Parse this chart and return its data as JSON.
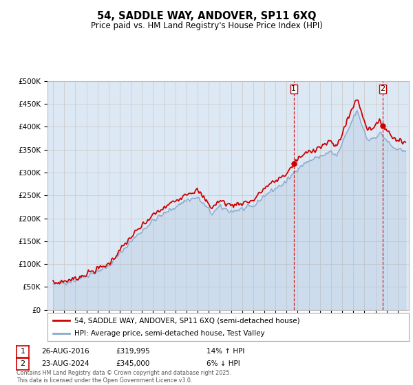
{
  "title": "54, SADDLE WAY, ANDOVER, SP11 6XQ",
  "subtitle": "Price paid vs. HM Land Registry's House Price Index (HPI)",
  "ylabel_ticks": [
    "£0",
    "£50K",
    "£100K",
    "£150K",
    "£200K",
    "£250K",
    "£300K",
    "£350K",
    "£400K",
    "£450K",
    "£500K"
  ],
  "ylim": [
    0,
    500000
  ],
  "xlim_start": 1994.5,
  "xlim_end": 2027.0,
  "red_color": "#cc0000",
  "blue_color": "#88aacc",
  "grid_color": "#cccccc",
  "bg_color": "#dde8f5",
  "legend_label_red": "54, SADDLE WAY, ANDOVER, SP11 6XQ (semi-detached house)",
  "legend_label_blue": "HPI: Average price, semi-detached house, Test Valley",
  "transaction1_date": "26-AUG-2016",
  "transaction1_price": "£319,995",
  "transaction1_hpi": "14% ↑ HPI",
  "transaction2_date": "23-AUG-2024",
  "transaction2_price": "£345,000",
  "transaction2_hpi": "6% ↓ HPI",
  "footer": "Contains HM Land Registry data © Crown copyright and database right 2025.\nThis data is licensed under the Open Government Licence v3.0.",
  "vline1_x": 2016.65,
  "vline2_x": 2024.65
}
